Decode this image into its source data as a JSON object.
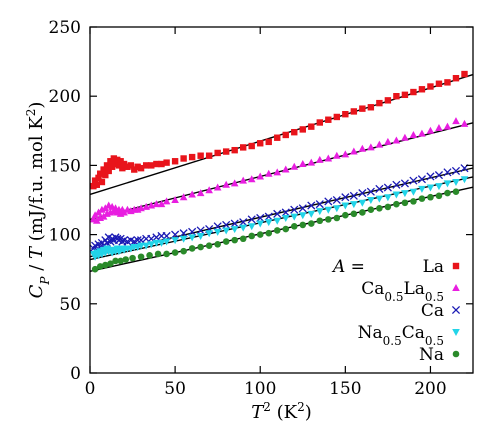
{
  "chart_data": {
    "type": "scatter",
    "title": "",
    "xlabel": "T^2 (K^2)",
    "ylabel": "C_P / T (mJ/f.u. mol K^2)",
    "xlim": [
      0,
      225
    ],
    "ylim": [
      0,
      250
    ],
    "xticks": [
      0,
      50,
      100,
      150,
      200
    ],
    "yticks": [
      0,
      50,
      100,
      150,
      200,
      250
    ],
    "grid": false,
    "legend_placement": "bottom-right",
    "legend_prefix": "A =",
    "series": [
      {
        "name": "La",
        "label_parts": [
          {
            "t": "La"
          }
        ],
        "color": "#e8141b",
        "marker": "square",
        "fit_line": {
          "intercept": 129,
          "slope": 0.385
        },
        "points": [
          [
            2,
            135
          ],
          [
            3,
            139
          ],
          [
            4,
            136
          ],
          [
            5,
            141
          ],
          [
            6,
            144
          ],
          [
            7,
            138
          ],
          [
            8,
            147
          ],
          [
            9,
            143
          ],
          [
            10,
            150
          ],
          [
            11,
            146
          ],
          [
            12,
            153
          ],
          [
            13,
            149
          ],
          [
            14,
            155
          ],
          [
            15,
            151
          ],
          [
            16,
            154
          ],
          [
            17,
            150
          ],
          [
            18,
            153
          ],
          [
            19,
            148
          ],
          [
            20,
            151
          ],
          [
            22,
            149
          ],
          [
            24,
            150
          ],
          [
            26,
            147
          ],
          [
            28,
            149
          ],
          [
            30,
            148
          ],
          [
            33,
            150
          ],
          [
            36,
            150
          ],
          [
            39,
            151
          ],
          [
            42,
            151
          ],
          [
            45,
            152
          ],
          [
            50,
            153
          ],
          [
            55,
            155
          ],
          [
            60,
            156
          ],
          [
            65,
            157
          ],
          [
            70,
            157
          ],
          [
            75,
            159
          ],
          [
            80,
            160
          ],
          [
            85,
            161
          ],
          [
            90,
            163
          ],
          [
            95,
            164
          ],
          [
            100,
            166
          ],
          [
            105,
            167
          ],
          [
            110,
            170
          ],
          [
            115,
            172
          ],
          [
            120,
            174
          ],
          [
            125,
            176
          ],
          [
            130,
            178
          ],
          [
            135,
            181
          ],
          [
            140,
            183
          ],
          [
            145,
            185
          ],
          [
            150,
            187
          ],
          [
            155,
            189
          ],
          [
            160,
            191
          ],
          [
            165,
            192
          ],
          [
            170,
            195
          ],
          [
            175,
            197
          ],
          [
            180,
            200
          ],
          [
            185,
            201
          ],
          [
            190,
            203
          ],
          [
            195,
            205
          ],
          [
            200,
            207
          ],
          [
            205,
            209
          ],
          [
            210,
            210
          ],
          [
            215,
            213
          ],
          [
            220,
            216
          ]
        ]
      },
      {
        "name": "Ca0.5La0.5",
        "label_parts": [
          {
            "t": "Ca"
          },
          {
            "t": "0.5",
            "sub": true
          },
          {
            "t": "La"
          },
          {
            "t": "0.5",
            "sub": true
          }
        ],
        "color": "#e81ee0",
        "marker": "triangle-up",
        "fit_line": {
          "intercept": 111,
          "slope": 0.31
        },
        "points": [
          [
            2,
            111
          ],
          [
            3,
            114
          ],
          [
            4,
            110
          ],
          [
            5,
            116
          ],
          [
            6,
            112
          ],
          [
            7,
            118
          ],
          [
            8,
            113
          ],
          [
            9,
            119
          ],
          [
            10,
            115
          ],
          [
            11,
            121
          ],
          [
            12,
            116
          ],
          [
            13,
            120
          ],
          [
            14,
            117
          ],
          [
            15,
            119
          ],
          [
            16,
            116
          ],
          [
            17,
            118
          ],
          [
            18,
            115
          ],
          [
            19,
            118
          ],
          [
            20,
            116
          ],
          [
            22,
            118
          ],
          [
            24,
            117
          ],
          [
            26,
            118
          ],
          [
            28,
            118
          ],
          [
            30,
            119
          ],
          [
            33,
            120
          ],
          [
            36,
            121
          ],
          [
            39,
            122
          ],
          [
            42,
            122
          ],
          [
            45,
            124
          ],
          [
            50,
            125
          ],
          [
            55,
            127
          ],
          [
            60,
            129
          ],
          [
            65,
            130
          ],
          [
            70,
            132
          ],
          [
            75,
            134
          ],
          [
            80,
            136
          ],
          [
            85,
            137
          ],
          [
            90,
            139
          ],
          [
            95,
            140
          ],
          [
            100,
            142
          ],
          [
            105,
            144
          ],
          [
            110,
            145
          ],
          [
            115,
            147
          ],
          [
            120,
            149
          ],
          [
            125,
            151
          ],
          [
            130,
            152
          ],
          [
            135,
            154
          ],
          [
            140,
            155
          ],
          [
            145,
            157
          ],
          [
            150,
            158
          ],
          [
            155,
            160
          ],
          [
            160,
            162
          ],
          [
            165,
            163
          ],
          [
            170,
            165
          ],
          [
            175,
            167
          ],
          [
            180,
            168
          ],
          [
            185,
            170
          ],
          [
            190,
            172
          ],
          [
            195,
            173
          ],
          [
            200,
            175
          ],
          [
            205,
            177
          ],
          [
            210,
            178
          ],
          [
            215,
            182
          ],
          [
            220,
            180
          ]
        ]
      },
      {
        "name": "Ca",
        "label_parts": [
          {
            "t": "Ca"
          }
        ],
        "color": "#1a1ab4",
        "marker": "x",
        "fit_line": {
          "intercept": 84,
          "slope": 0.285
        },
        "points": [
          [
            2,
            90
          ],
          [
            3,
            92
          ],
          [
            4,
            89
          ],
          [
            5,
            93
          ],
          [
            6,
            91
          ],
          [
            7,
            94
          ],
          [
            8,
            92
          ],
          [
            9,
            96
          ],
          [
            10,
            94
          ],
          [
            11,
            98
          ],
          [
            12,
            95
          ],
          [
            13,
            97
          ],
          [
            14,
            96
          ],
          [
            15,
            98
          ],
          [
            16,
            97
          ],
          [
            17,
            96
          ],
          [
            18,
            97
          ],
          [
            19,
            95
          ],
          [
            20,
            96
          ],
          [
            22,
            95
          ],
          [
            24,
            96
          ],
          [
            26,
            95
          ],
          [
            28,
            96
          ],
          [
            30,
            96
          ],
          [
            33,
            97
          ],
          [
            36,
            97
          ],
          [
            39,
            98
          ],
          [
            42,
            99
          ],
          [
            45,
            99
          ],
          [
            50,
            100
          ],
          [
            55,
            101
          ],
          [
            60,
            102
          ],
          [
            65,
            103
          ],
          [
            70,
            104
          ],
          [
            75,
            106
          ],
          [
            80,
            107
          ],
          [
            85,
            108
          ],
          [
            90,
            109
          ],
          [
            95,
            111
          ],
          [
            100,
            112
          ],
          [
            105,
            113
          ],
          [
            110,
            115
          ],
          [
            115,
            116
          ],
          [
            120,
            118
          ],
          [
            125,
            119
          ],
          [
            130,
            121
          ],
          [
            135,
            122
          ],
          [
            140,
            124
          ],
          [
            145,
            125
          ],
          [
            150,
            127
          ],
          [
            155,
            128
          ],
          [
            160,
            130
          ],
          [
            165,
            131
          ],
          [
            170,
            133
          ],
          [
            175,
            134
          ],
          [
            180,
            136
          ],
          [
            185,
            137
          ],
          [
            190,
            139
          ],
          [
            195,
            140
          ],
          [
            200,
            142
          ],
          [
            205,
            143
          ],
          [
            210,
            145
          ],
          [
            215,
            146
          ],
          [
            220,
            148
          ]
        ]
      },
      {
        "name": "Na0.5Ca0.5",
        "label_parts": [
          {
            "t": "Na"
          },
          {
            "t": "0.5",
            "sub": true
          },
          {
            "t": "Ca"
          },
          {
            "t": "0.5",
            "sub": true
          }
        ],
        "color": "#22d4e8",
        "marker": "triangle-down",
        "fit_line": {
          "intercept": 82,
          "slope": 0.265
        },
        "points": [
          [
            2,
            86
          ],
          [
            3,
            84
          ],
          [
            4,
            87
          ],
          [
            5,
            85
          ],
          [
            6,
            88
          ],
          [
            7,
            86
          ],
          [
            8,
            89
          ],
          [
            9,
            87
          ],
          [
            10,
            90
          ],
          [
            11,
            88
          ],
          [
            12,
            89
          ],
          [
            13,
            87
          ],
          [
            14,
            89
          ],
          [
            15,
            88
          ],
          [
            16,
            90
          ],
          [
            17,
            88
          ],
          [
            18,
            89
          ],
          [
            19,
            90
          ],
          [
            20,
            89
          ],
          [
            22,
            90
          ],
          [
            24,
            90
          ],
          [
            26,
            91
          ],
          [
            28,
            91
          ],
          [
            30,
            92
          ],
          [
            33,
            92
          ],
          [
            36,
            93
          ],
          [
            39,
            94
          ],
          [
            42,
            94
          ],
          [
            45,
            95
          ],
          [
            50,
            96
          ],
          [
            55,
            97
          ],
          [
            60,
            98
          ],
          [
            65,
            99
          ],
          [
            70,
            101
          ],
          [
            75,
            102
          ],
          [
            80,
            103
          ],
          [
            85,
            104
          ],
          [
            90,
            105
          ],
          [
            95,
            106
          ],
          [
            100,
            108
          ],
          [
            105,
            109
          ],
          [
            110,
            110
          ],
          [
            115,
            112
          ],
          [
            120,
            113
          ],
          [
            125,
            114
          ],
          [
            130,
            115
          ],
          [
            135,
            117
          ],
          [
            140,
            118
          ],
          [
            145,
            119
          ],
          [
            150,
            121
          ],
          [
            155,
            122
          ],
          [
            160,
            123
          ],
          [
            165,
            125
          ],
          [
            170,
            126
          ],
          [
            175,
            127
          ],
          [
            180,
            129
          ],
          [
            185,
            130
          ],
          [
            190,
            131
          ],
          [
            195,
            133
          ],
          [
            200,
            134
          ],
          [
            205,
            135
          ],
          [
            210,
            137
          ],
          [
            215,
            138
          ],
          [
            220,
            140
          ]
        ]
      },
      {
        "name": "Na",
        "label_parts": [
          {
            "t": "Na"
          }
        ],
        "color": "#2a8a2a",
        "marker": "circle",
        "fit_line": {
          "intercept": 73.5,
          "slope": 0.27
        },
        "points": [
          [
            3,
            75
          ],
          [
            6,
            77
          ],
          [
            9,
            78
          ],
          [
            12,
            79
          ],
          [
            15,
            81
          ],
          [
            18,
            81
          ],
          [
            21,
            82
          ],
          [
            25,
            83
          ],
          [
            30,
            84
          ],
          [
            35,
            85
          ],
          [
            40,
            86
          ],
          [
            45,
            86
          ],
          [
            50,
            87
          ],
          [
            55,
            88
          ],
          [
            60,
            90
          ],
          [
            65,
            91
          ],
          [
            70,
            92
          ],
          [
            75,
            93
          ],
          [
            80,
            95
          ],
          [
            85,
            96
          ],
          [
            90,
            97
          ],
          [
            95,
            99
          ],
          [
            100,
            100
          ],
          [
            105,
            101
          ],
          [
            110,
            103
          ],
          [
            115,
            104
          ],
          [
            120,
            106
          ],
          [
            125,
            107
          ],
          [
            130,
            108
          ],
          [
            135,
            110
          ],
          [
            140,
            111
          ],
          [
            145,
            112
          ],
          [
            150,
            114
          ],
          [
            155,
            115
          ],
          [
            160,
            116
          ],
          [
            165,
            118
          ],
          [
            170,
            119
          ],
          [
            175,
            120
          ],
          [
            180,
            122
          ],
          [
            185,
            123
          ],
          [
            190,
            124
          ],
          [
            195,
            126
          ],
          [
            200,
            127
          ],
          [
            205,
            128
          ],
          [
            210,
            130
          ],
          [
            215,
            131
          ]
        ]
      }
    ]
  }
}
